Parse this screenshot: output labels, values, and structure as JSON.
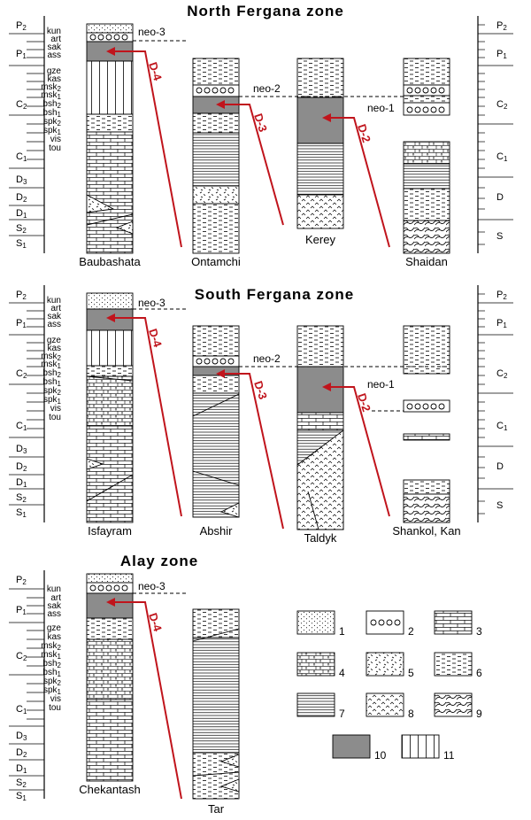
{
  "zones": [
    {
      "title": "North Fergana zone",
      "columns": [
        "Baubashata",
        "Ontamchi",
        "Kerey",
        "Shaidan"
      ],
      "neo_labels": [
        "neo-3",
        "neo-2",
        "neo-1"
      ],
      "d_labels": [
        "D-4",
        "D-3",
        "D-2"
      ]
    },
    {
      "title": "South Fergana zone",
      "columns": [
        "Isfayram",
        "Abshir",
        "Taldyk",
        "Shankol, Kan"
      ],
      "neo_labels": [
        "neo-3",
        "neo-2",
        "neo-1"
      ],
      "d_labels": [
        "D-4",
        "D-3",
        "D-2"
      ]
    },
    {
      "title": "Alay zone",
      "columns": [
        "Chekantash",
        "Tar"
      ],
      "neo_labels": [
        "neo-3"
      ],
      "d_labels": [
        "D-4"
      ]
    }
  ],
  "left_scale": {
    "systems": [
      "P2",
      "P1",
      "C2",
      "C1",
      "D3",
      "D2",
      "D1",
      "S2",
      "S1"
    ],
    "stages": [
      "kun",
      "art",
      "sak",
      "ass",
      "gze",
      "kas",
      "msk2",
      "msk1",
      "bsh2",
      "bsh1",
      "spk2",
      "spk1",
      "vis",
      "tou"
    ]
  },
  "right_scale": {
    "systems": [
      "P2",
      "P1",
      "C2",
      "C1",
      "D",
      "S"
    ]
  },
  "legend": {
    "items": [
      "1",
      "2",
      "3",
      "4",
      "5",
      "6",
      "7",
      "8",
      "9",
      "10",
      "11"
    ]
  },
  "colors": {
    "arrow": "#c0141c",
    "fill_gray": "#8c8c8c",
    "line": "#000000"
  }
}
